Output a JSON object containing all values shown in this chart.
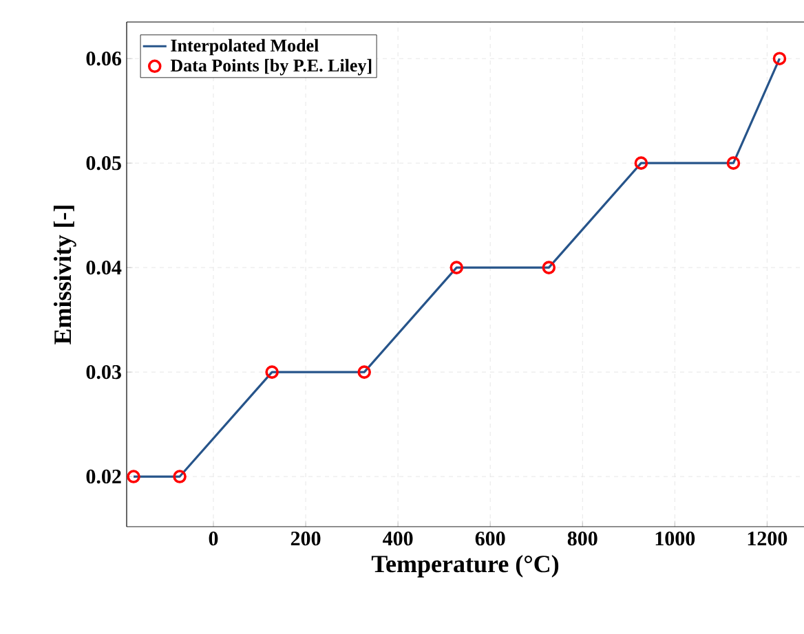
{
  "chart_data": {
    "type": "line",
    "xlabel": "Temperature (°C)",
    "ylabel": "Emissivity [-]",
    "xlim": [
      -188,
      1280
    ],
    "ylim": [
      0.0152,
      0.0635
    ],
    "xticks": [
      0,
      200,
      400,
      600,
      800,
      1000,
      1200
    ],
    "yticks": [
      0.02,
      0.03,
      0.04,
      0.05,
      0.06
    ],
    "grid": true,
    "legend": "top left",
    "series": [
      {
        "name": "Interpolated Model",
        "color": "#26548a",
        "marker": "none",
        "line_style": "solid",
        "x": [
          -173,
          -73,
          127,
          327,
          527,
          727,
          927,
          1127,
          1227
        ],
        "values": [
          0.02,
          0.02,
          0.03,
          0.03,
          0.04,
          0.04,
          0.05,
          0.05,
          0.06
        ]
      },
      {
        "name": "Data Points [by P.E. Liley]",
        "type": "scatter",
        "color": "#ff0000",
        "marker": "circle",
        "x": [
          -173,
          -73,
          127,
          327,
          527,
          727,
          927,
          1127,
          1227
        ],
        "values": [
          0.02,
          0.02,
          0.03,
          0.03,
          0.04,
          0.04,
          0.05,
          0.05,
          0.06
        ]
      }
    ]
  }
}
